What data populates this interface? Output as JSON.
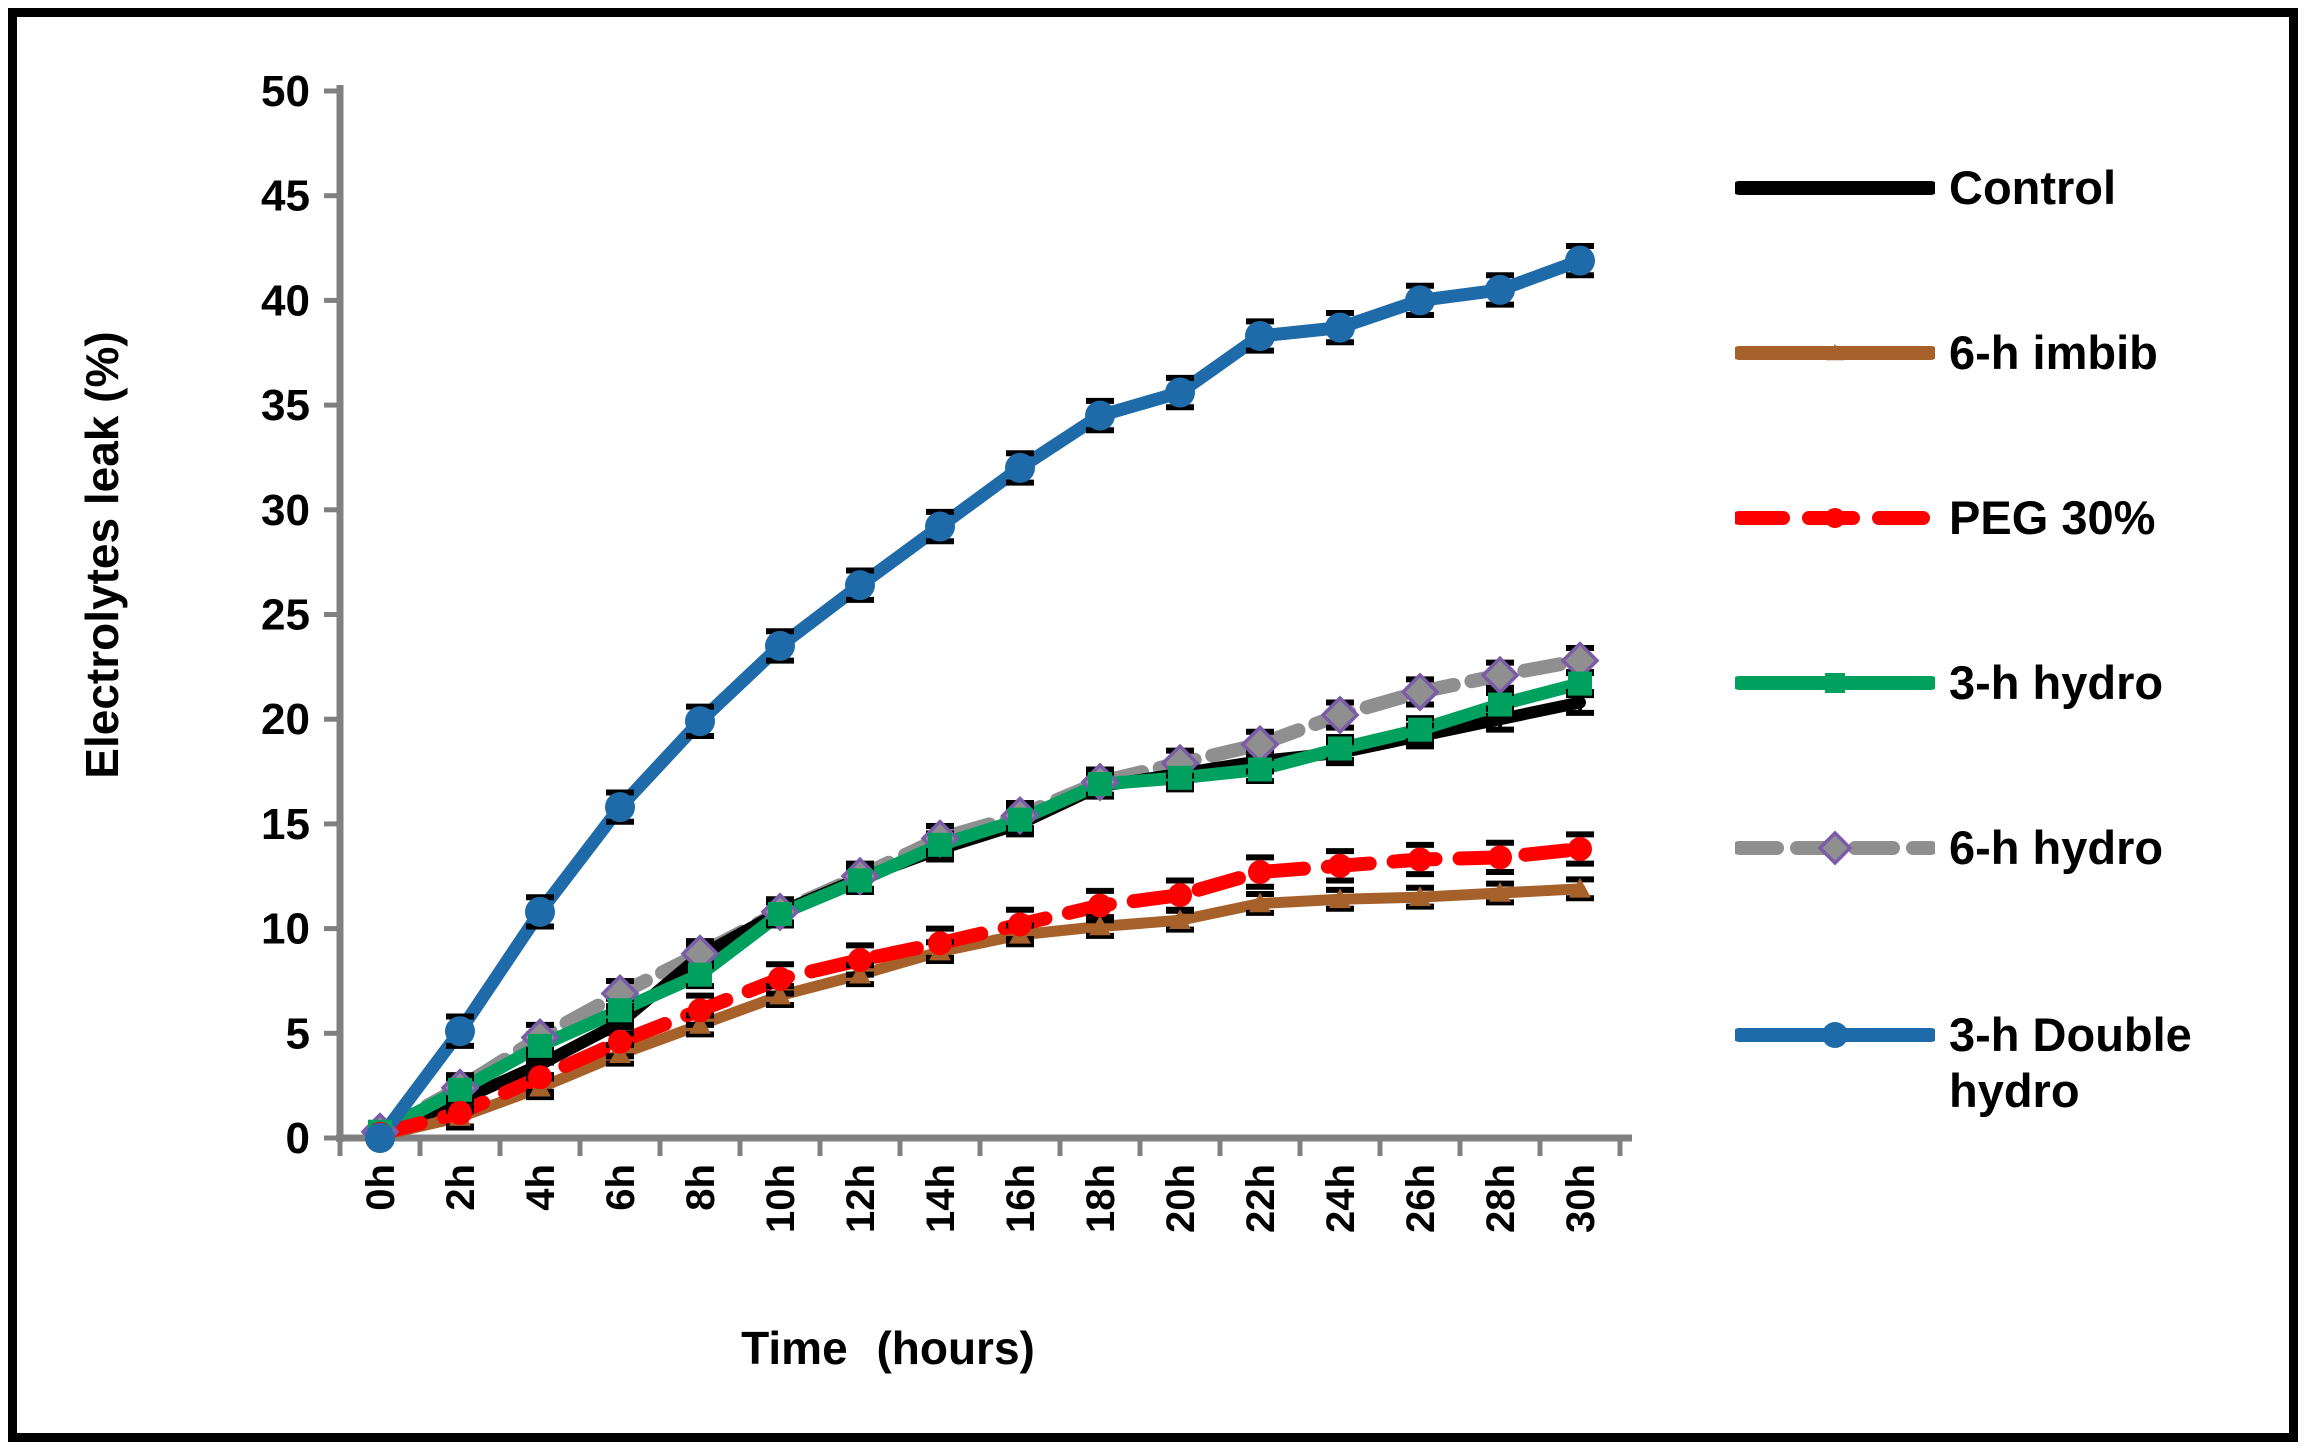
{
  "figure": {
    "border_color": "#000000",
    "background": "#ffffff",
    "axis_color": "#808080",
    "text_color": "#000000"
  },
  "chart_data": {
    "type": "line",
    "title": "",
    "xlabel": "Time (hours)",
    "ylabel": "Electrolytes leak (%)",
    "x_categories": [
      "0h",
      "2h",
      "4h",
      "6h",
      "8h",
      "10h",
      "12h",
      "14h",
      "16h",
      "18h",
      "20h",
      "22h",
      "24h",
      "26h",
      "28h",
      "30h"
    ],
    "ylim": [
      0,
      50
    ],
    "yticks": [
      0,
      5,
      10,
      15,
      20,
      25,
      30,
      35,
      40,
      45,
      50
    ],
    "grid": false,
    "legend_position": "right",
    "error_bars": true,
    "series": [
      {
        "name": "Control",
        "color": "#000000",
        "style": "solid",
        "marker": "none",
        "marker_edge": "#000000",
        "err": 0.5,
        "values": [
          0.2,
          1.8,
          3.5,
          5.5,
          8.7,
          10.8,
          12.4,
          13.8,
          15.0,
          16.8,
          17.4,
          18.0,
          18.4,
          19.2,
          20.0,
          20.8
        ]
      },
      {
        "name": "6-h imbib",
        "color": "#A6602A",
        "style": "solid",
        "marker": "triangle",
        "marker_edge": "#A6602A",
        "err": 0.45,
        "values": [
          0.1,
          1.0,
          2.4,
          4.0,
          5.4,
          6.8,
          7.8,
          8.9,
          9.7,
          10.1,
          10.4,
          11.2,
          11.4,
          11.5,
          11.7,
          11.9
        ]
      },
      {
        "name": "PEG 30%",
        "color": "#FF0000",
        "style": "dashed",
        "marker": "circle",
        "marker_edge": "#FF0000",
        "err": 0.7,
        "values": [
          0.2,
          1.2,
          2.9,
          4.6,
          6.1,
          7.6,
          8.5,
          9.3,
          10.2,
          11.1,
          11.6,
          12.7,
          13.0,
          13.3,
          13.4,
          13.8
        ]
      },
      {
        "name": "3-h hydro",
        "color": "#00A05F",
        "style": "solid",
        "marker": "square",
        "marker_edge": "#00A05F",
        "err": 0.55,
        "values": [
          0.3,
          2.3,
          4.4,
          6.1,
          7.8,
          10.7,
          12.3,
          14.0,
          15.2,
          16.9,
          17.2,
          17.6,
          18.6,
          19.5,
          20.7,
          21.7
        ]
      },
      {
        "name": "6-h hydro",
        "color": "#8F8F8F",
        "style": "dashed",
        "marker": "diamond",
        "marker_edge": "#7A5CA8",
        "err": 0.6,
        "values": [
          0.3,
          2.4,
          4.8,
          6.9,
          8.8,
          10.8,
          12.5,
          14.3,
          15.4,
          17.0,
          17.9,
          18.8,
          20.2,
          21.3,
          22.1,
          22.8
        ]
      },
      {
        "name": "3-h Double hydro",
        "color": "#1F6AA8",
        "style": "solid",
        "marker": "circle",
        "marker_edge": "#1F6AA8",
        "err": 0.7,
        "values": [
          0.0,
          5.1,
          10.8,
          15.8,
          19.9,
          23.5,
          26.4,
          29.2,
          32.0,
          34.5,
          35.6,
          38.3,
          38.7,
          40.0,
          40.5,
          41.9
        ]
      }
    ]
  }
}
